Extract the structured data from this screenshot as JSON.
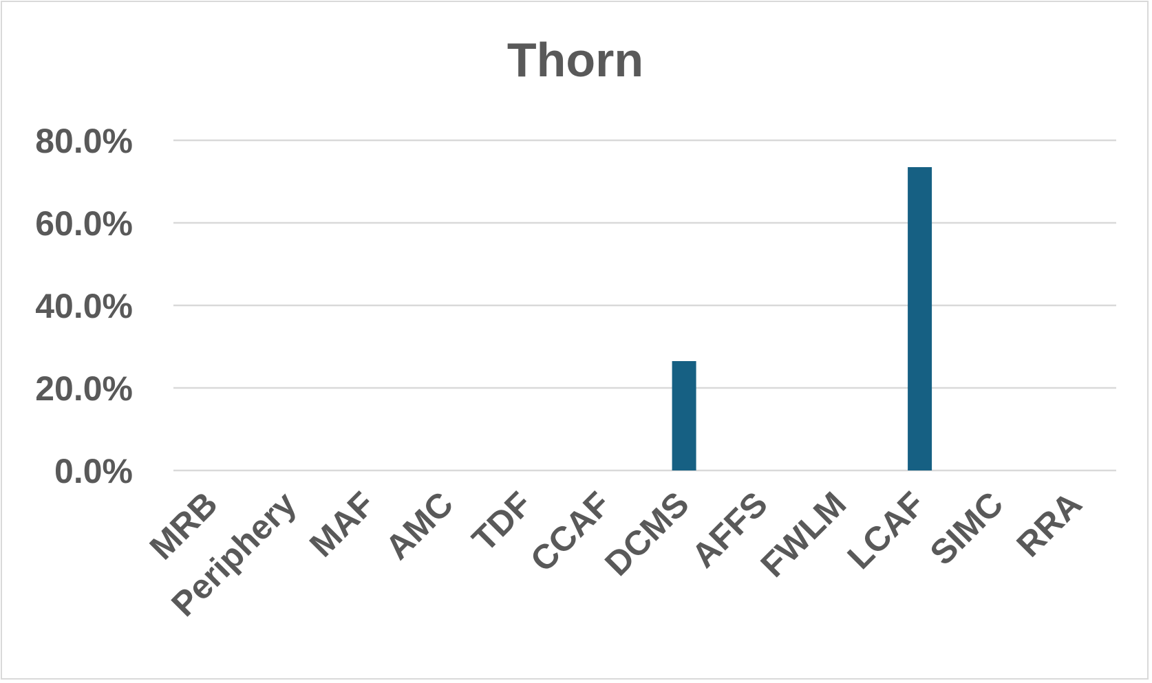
{
  "chart_data": {
    "type": "bar",
    "title": "Thorn",
    "xlabel": "",
    "ylabel": "",
    "categories": [
      "MRB",
      "Periphery",
      "MAF",
      "AMC",
      "TDF",
      "CCAF",
      "DCMS",
      "AFFS",
      "FWLM",
      "LCAF",
      "SIMC",
      "RRA"
    ],
    "values": [
      0.0,
      0.0,
      0.0,
      0.0,
      0.0,
      0.0,
      26.5,
      0.0,
      0.0,
      73.5,
      0.0,
      0.0
    ],
    "value_format": "percent",
    "ylim": [
      0,
      80
    ],
    "yticks": [
      0,
      20,
      40,
      60,
      80
    ],
    "ytick_labels": [
      "0.0%",
      "20.0%",
      "40.0%",
      "60.0%",
      "80.0%"
    ],
    "grid": true,
    "legend": "none",
    "bar_color": "#166083",
    "grid_color": "#d9d9d9",
    "text_color": "#595959"
  }
}
